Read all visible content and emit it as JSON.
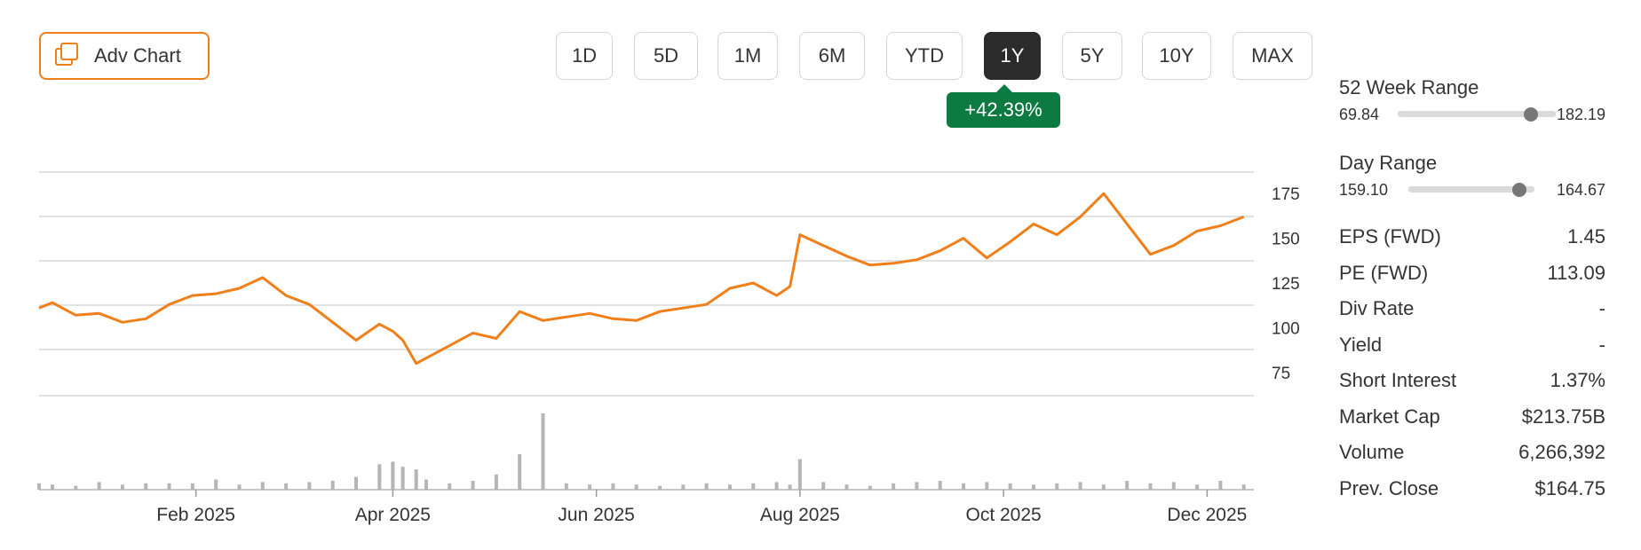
{
  "toolbar": {
    "adv_chart_label": "Adv Chart",
    "ranges": [
      {
        "label": "1D",
        "active": false
      },
      {
        "label": "5D",
        "active": false
      },
      {
        "label": "1M",
        "active": false
      },
      {
        "label": "6M",
        "active": false
      },
      {
        "label": "YTD",
        "active": false
      },
      {
        "label": "1Y",
        "active": true
      },
      {
        "label": "5Y",
        "active": false
      },
      {
        "label": "10Y",
        "active": false
      },
      {
        "label": "MAX",
        "active": false
      }
    ],
    "change": "+42.39%",
    "icon": "adv-chart-icon"
  },
  "colors": {
    "line": "#f07f1a",
    "accent": "#f07f1a",
    "positive": "#0c7a41",
    "volume": "#b5b5b5",
    "grid": "#d9d9d9"
  },
  "chart_data": {
    "type": "line",
    "x_tick_labels": [
      "Feb 2025",
      "Apr 2025",
      "Jun 2025",
      "Aug 2025",
      "Oct 2025",
      "Dec 2025"
    ],
    "y_tick_labels": [
      75,
      100,
      125,
      150,
      175
    ],
    "ylim": [
      62,
      187
    ],
    "x": [
      "2024-12-16",
      "2024-12-20",
      "2024-12-27",
      "2025-01-03",
      "2025-01-10",
      "2025-01-17",
      "2025-01-24",
      "2025-01-31",
      "2025-02-07",
      "2025-02-14",
      "2025-02-21",
      "2025-02-28",
      "2025-03-07",
      "2025-03-14",
      "2025-03-21",
      "2025-03-28",
      "2025-04-01",
      "2025-04-04",
      "2025-04-08",
      "2025-04-11",
      "2025-04-18",
      "2025-04-25",
      "2025-05-02",
      "2025-05-09",
      "2025-05-16",
      "2025-05-23",
      "2025-05-30",
      "2025-06-06",
      "2025-06-13",
      "2025-06-20",
      "2025-06-27",
      "2025-07-04",
      "2025-07-11",
      "2025-07-18",
      "2025-07-25",
      "2025-07-29",
      "2025-08-01",
      "2025-08-08",
      "2025-08-15",
      "2025-08-22",
      "2025-08-29",
      "2025-09-05",
      "2025-09-12",
      "2025-09-19",
      "2025-09-26",
      "2025-10-03",
      "2025-10-10",
      "2025-10-17",
      "2025-10-24",
      "2025-10-31",
      "2025-11-07",
      "2025-11-14",
      "2025-11-21",
      "2025-11-28",
      "2025-12-05",
      "2025-12-12"
    ],
    "series": [
      {
        "values": [
          111,
          114,
          107,
          108,
          103,
          105,
          113,
          118,
          119,
          122,
          128,
          118,
          113,
          103,
          93,
          102,
          98,
          93,
          80,
          83,
          90,
          97,
          94,
          109,
          104,
          106,
          108,
          105,
          104,
          109,
          111,
          113,
          122,
          125,
          118,
          123,
          152,
          146,
          140,
          135,
          136,
          138,
          143,
          150,
          139,
          148,
          158,
          152,
          162,
          175,
          158,
          141,
          146,
          154,
          157,
          162
        ]
      }
    ],
    "volume": [
      0.05,
      0.04,
      0.03,
      0.06,
      0.04,
      0.05,
      0.05,
      0.05,
      0.08,
      0.04,
      0.06,
      0.05,
      0.06,
      0.07,
      0.1,
      0.2,
      0.22,
      0.18,
      0.16,
      0.08,
      0.05,
      0.07,
      0.12,
      0.28,
      0.6,
      0.05,
      0.04,
      0.05,
      0.04,
      0.03,
      0.04,
      0.05,
      0.04,
      0.05,
      0.06,
      0.04,
      0.24,
      0.06,
      0.04,
      0.03,
      0.05,
      0.06,
      0.07,
      0.05,
      0.06,
      0.05,
      0.04,
      0.05,
      0.06,
      0.04,
      0.07,
      0.05,
      0.06,
      0.04,
      0.07,
      0.04
    ]
  },
  "stats": {
    "week52": {
      "title": "52 Week Range",
      "low": "69.84",
      "high": "182.19",
      "position": 0.84
    },
    "day": {
      "title": "Day Range",
      "low": "159.10",
      "high": "164.67",
      "position": 0.88
    },
    "rows": [
      {
        "label": "EPS (FWD)",
        "value": "1.45"
      },
      {
        "label": "PE (FWD)",
        "value": "113.09"
      },
      {
        "label": "Div Rate",
        "value": "-"
      },
      {
        "label": "Yield",
        "value": "-"
      },
      {
        "label": "Short Interest",
        "value": "1.37%"
      },
      {
        "label": "Market Cap",
        "value": "$213.75B"
      },
      {
        "label": "Volume",
        "value": "6,266,392"
      },
      {
        "label": "Prev. Close",
        "value": "$164.75"
      }
    ]
  }
}
